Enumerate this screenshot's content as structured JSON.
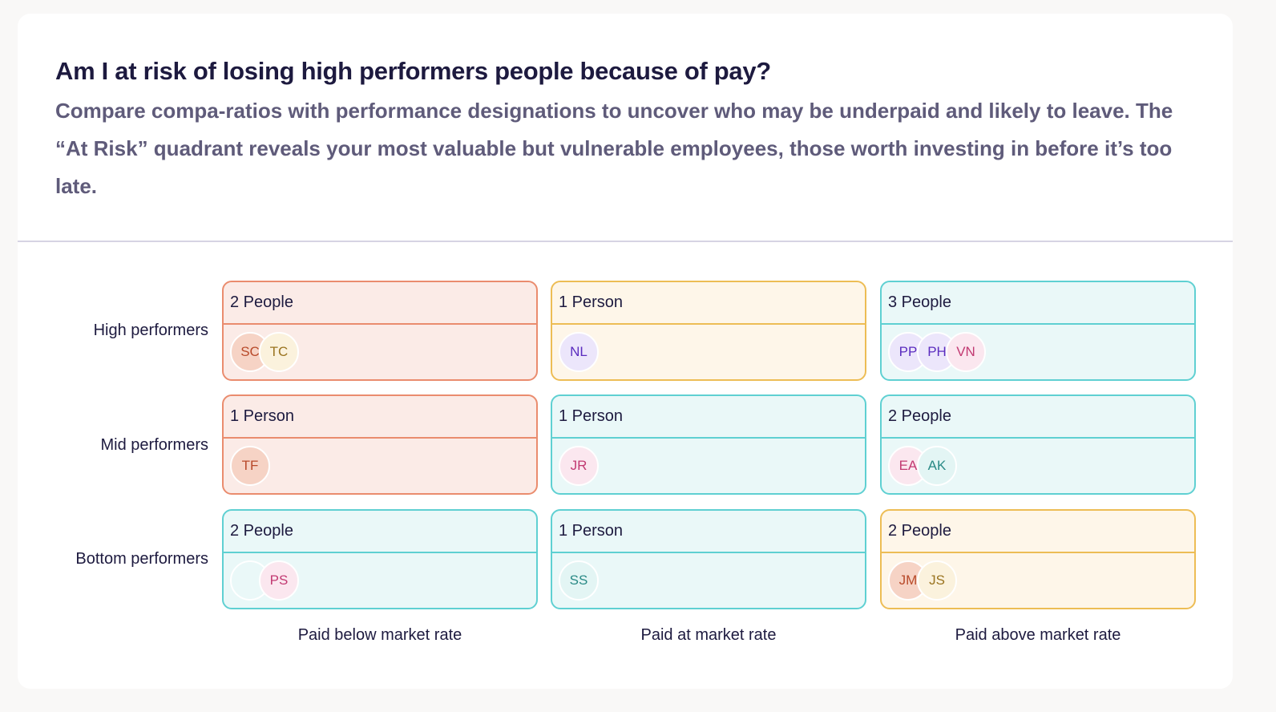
{
  "header": {
    "title": "Am I at risk of losing high performers people because of pay?",
    "subtitle": "Compare compa-ratios with performance designations to uncover who may be underpaid and likely to leave. The “At Risk” quadrant reveals your most valuable but vulnerable employees, those worth investing in before it’s too late."
  },
  "rows": [
    "High performers",
    "Mid performers",
    "Bottom performers"
  ],
  "columns": [
    "Paid below market rate",
    "Paid at market rate",
    "Paid above market rate"
  ],
  "cells": [
    {
      "count": "2 People",
      "tone": "red",
      "avatars": [
        {
          "initials": "SC",
          "bg": "#f6d3c5",
          "fg": "#b84a2a"
        },
        {
          "initials": "TC",
          "bg": "#fbf2dd",
          "fg": "#9a7420"
        }
      ]
    },
    {
      "count": "1 Person",
      "tone": "yellow",
      "avatars": [
        {
          "initials": "NL",
          "bg": "#ece6fb",
          "fg": "#5b2dbf"
        }
      ]
    },
    {
      "count": "3 People",
      "tone": "teal",
      "avatars": [
        {
          "initials": "PP",
          "bg": "#ece6fb",
          "fg": "#5b2dbf"
        },
        {
          "initials": "PH",
          "bg": "#ece6fb",
          "fg": "#5b2dbf"
        },
        {
          "initials": "VN",
          "bg": "#fbe7ef",
          "fg": "#c23a72"
        }
      ]
    },
    {
      "count": "1 Person",
      "tone": "red",
      "avatars": [
        {
          "initials": "TF",
          "bg": "#f6d3c5",
          "fg": "#b84a2a"
        }
      ]
    },
    {
      "count": "1 Person",
      "tone": "teal",
      "avatars": [
        {
          "initials": "JR",
          "bg": "#fbe7ef",
          "fg": "#c23a72"
        }
      ]
    },
    {
      "count": "2 People",
      "tone": "teal",
      "avatars": [
        {
          "initials": "EA",
          "bg": "#fbe7ef",
          "fg": "#c23a72"
        },
        {
          "initials": "AK",
          "bg": "#e3f5f4",
          "fg": "#2a8a86"
        }
      ]
    },
    {
      "count": "2 People",
      "tone": "teal",
      "avatars": [
        {
          "initials": "",
          "bg": "#eaf8f8",
          "fg": "#2a8a86"
        },
        {
          "initials": "PS",
          "bg": "#fbe7ef",
          "fg": "#c23a72"
        }
      ]
    },
    {
      "count": "1 Person",
      "tone": "teal",
      "avatars": [
        {
          "initials": "SS",
          "bg": "#e3f5f4",
          "fg": "#2a8a86"
        }
      ]
    },
    {
      "count": "2 People",
      "tone": "yellow",
      "avatars": [
        {
          "initials": "JM",
          "bg": "#f6d3c5",
          "fg": "#b84a2a"
        },
        {
          "initials": "JS",
          "bg": "#fbf2dd",
          "fg": "#9a7420"
        }
      ]
    }
  ]
}
